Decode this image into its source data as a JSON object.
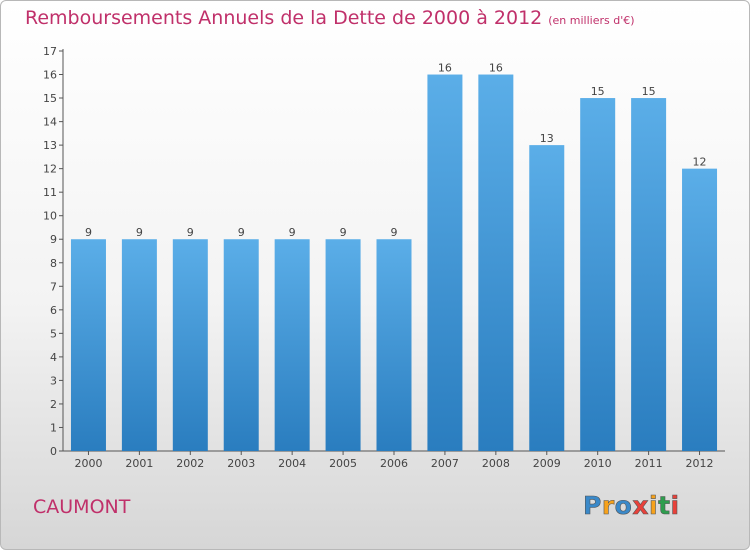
{
  "title": "Remboursements Annuels de la Dette de 2000 à 2012",
  "subtitle": "(en milliers d'€)",
  "commune": "CAUMONT",
  "logo": {
    "letters": [
      "P",
      "r",
      "o",
      "x",
      "i",
      "t",
      "i"
    ],
    "colors": [
      "#3a89c9",
      "#f7a21b",
      "#3a89c9",
      "#e8413a",
      "#f7a21b",
      "#2e9d4e",
      "#e8413a"
    ]
  },
  "colors": {
    "title": "#c0306a",
    "bar_top": "#5baee8",
    "bar_bottom": "#2a7dbf"
  },
  "chart_data": {
    "type": "bar",
    "categories": [
      "2000",
      "2001",
      "2002",
      "2003",
      "2004",
      "2005",
      "2006",
      "2007",
      "2008",
      "2009",
      "2010",
      "2011",
      "2012"
    ],
    "values": [
      9,
      9,
      9,
      9,
      9,
      9,
      9,
      16,
      16,
      13,
      15,
      15,
      12
    ],
    "data_labels": [
      "9",
      "9",
      "9",
      "9",
      "9",
      "9",
      "9",
      "16",
      "16",
      "13",
      "15",
      "15",
      "12"
    ],
    "yticks": [
      "0",
      "1",
      "2",
      "3",
      "4",
      "5",
      "6",
      "7",
      "8",
      "9",
      "10",
      "11",
      "12",
      "13",
      "14",
      "15",
      "16",
      "17"
    ],
    "ylim": [
      0,
      17
    ],
    "xlabel": "",
    "ylabel": "",
    "grid": false
  }
}
